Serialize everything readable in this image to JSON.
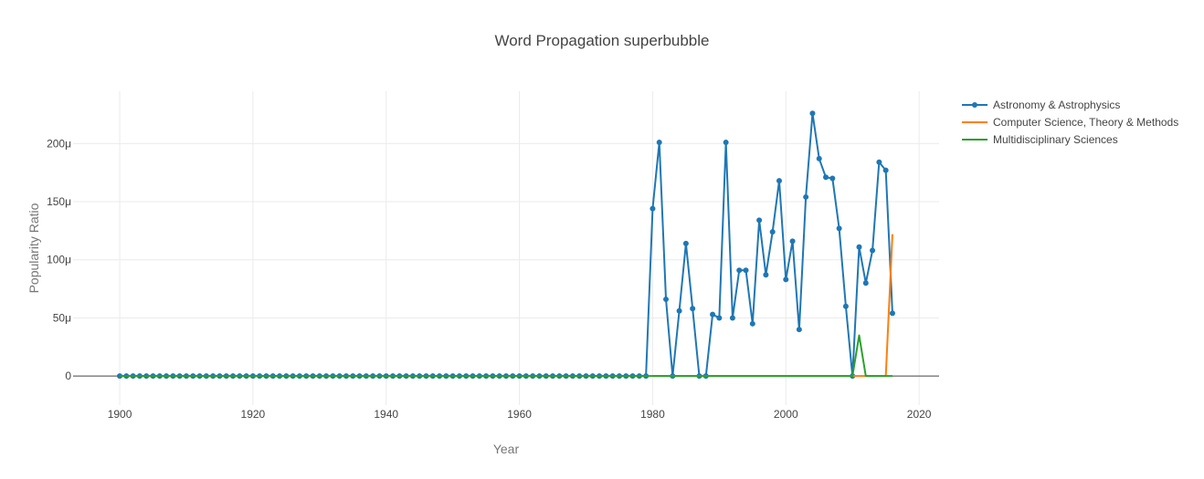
{
  "chart_data": {
    "type": "line",
    "title": "Word Propagation superbubble",
    "xlabel": "Year",
    "ylabel": "Popularity Ratio",
    "xlim": [
      1893,
      2023
    ],
    "ylim": [
      -2.5e-05,
      0.000245
    ],
    "x_ticks": [
      {
        "value": 1900,
        "label": "1900"
      },
      {
        "value": 1920,
        "label": "1920"
      },
      {
        "value": 1940,
        "label": "1940"
      },
      {
        "value": 1960,
        "label": "1960"
      },
      {
        "value": 1980,
        "label": "1980"
      },
      {
        "value": 2000,
        "label": "2000"
      },
      {
        "value": 2020,
        "label": "2020"
      }
    ],
    "y_ticks": [
      {
        "value": 0,
        "label": "0"
      },
      {
        "value": 5e-05,
        "label": "50μ"
      },
      {
        "value": 0.0001,
        "label": "100μ"
      },
      {
        "value": 0.00015,
        "label": "150μ"
      },
      {
        "value": 0.0002,
        "label": "200μ"
      }
    ],
    "grid": true,
    "legend_position": "top-right",
    "series": [
      {
        "name": "Astronomy & Astrophysics",
        "color": "#1f77b4",
        "markers": true,
        "points": [
          [
            1900,
            0
          ],
          [
            1901,
            0
          ],
          [
            1902,
            0
          ],
          [
            1903,
            0
          ],
          [
            1904,
            0
          ],
          [
            1905,
            0
          ],
          [
            1906,
            0
          ],
          [
            1907,
            0
          ],
          [
            1908,
            0
          ],
          [
            1909,
            0
          ],
          [
            1910,
            0
          ],
          [
            1911,
            0
          ],
          [
            1912,
            0
          ],
          [
            1913,
            0
          ],
          [
            1914,
            0
          ],
          [
            1915,
            0
          ],
          [
            1916,
            0
          ],
          [
            1917,
            0
          ],
          [
            1918,
            0
          ],
          [
            1919,
            0
          ],
          [
            1920,
            0
          ],
          [
            1921,
            0
          ],
          [
            1922,
            0
          ],
          [
            1923,
            0
          ],
          [
            1924,
            0
          ],
          [
            1925,
            0
          ],
          [
            1926,
            0
          ],
          [
            1927,
            0
          ],
          [
            1928,
            0
          ],
          [
            1929,
            0
          ],
          [
            1930,
            0
          ],
          [
            1931,
            0
          ],
          [
            1932,
            0
          ],
          [
            1933,
            0
          ],
          [
            1934,
            0
          ],
          [
            1935,
            0
          ],
          [
            1936,
            0
          ],
          [
            1937,
            0
          ],
          [
            1938,
            0
          ],
          [
            1939,
            0
          ],
          [
            1940,
            0
          ],
          [
            1941,
            0
          ],
          [
            1942,
            0
          ],
          [
            1943,
            0
          ],
          [
            1944,
            0
          ],
          [
            1945,
            0
          ],
          [
            1946,
            0
          ],
          [
            1947,
            0
          ],
          [
            1948,
            0
          ],
          [
            1949,
            0
          ],
          [
            1950,
            0
          ],
          [
            1951,
            0
          ],
          [
            1952,
            0
          ],
          [
            1953,
            0
          ],
          [
            1954,
            0
          ],
          [
            1955,
            0
          ],
          [
            1956,
            0
          ],
          [
            1957,
            0
          ],
          [
            1958,
            0
          ],
          [
            1959,
            0
          ],
          [
            1960,
            0
          ],
          [
            1961,
            0
          ],
          [
            1962,
            0
          ],
          [
            1963,
            0
          ],
          [
            1964,
            0
          ],
          [
            1965,
            0
          ],
          [
            1966,
            0
          ],
          [
            1967,
            0
          ],
          [
            1968,
            0
          ],
          [
            1969,
            0
          ],
          [
            1970,
            0
          ],
          [
            1971,
            0
          ],
          [
            1972,
            0
          ],
          [
            1973,
            0
          ],
          [
            1974,
            0
          ],
          [
            1975,
            0
          ],
          [
            1976,
            0
          ],
          [
            1977,
            0
          ],
          [
            1978,
            0
          ],
          [
            1979,
            0
          ],
          [
            1980,
            0.000144
          ],
          [
            1981,
            0.000201
          ],
          [
            1982,
            6.6e-05
          ],
          [
            1983,
            0
          ],
          [
            1984,
            5.6e-05
          ],
          [
            1985,
            0.000114
          ],
          [
            1986,
            5.8e-05
          ],
          [
            1987,
            0
          ],
          [
            1988,
            0
          ],
          [
            1989,
            5.3e-05
          ],
          [
            1990,
            5e-05
          ],
          [
            1991,
            0.000201
          ],
          [
            1992,
            5e-05
          ],
          [
            1993,
            9.1e-05
          ],
          [
            1994,
            9.1e-05
          ],
          [
            1995,
            4.5e-05
          ],
          [
            1996,
            0.000134
          ],
          [
            1997,
            8.7e-05
          ],
          [
            1998,
            0.000124
          ],
          [
            1999,
            0.000168
          ],
          [
            2000,
            8.3e-05
          ],
          [
            2001,
            0.000116
          ],
          [
            2002,
            4e-05
          ],
          [
            2003,
            0.000154
          ],
          [
            2004,
            0.000226
          ],
          [
            2005,
            0.000187
          ],
          [
            2006,
            0.000171
          ],
          [
            2007,
            0.00017
          ],
          [
            2008,
            0.000127
          ],
          [
            2009,
            6e-05
          ],
          [
            2010,
            0
          ],
          [
            2011,
            0.000111
          ],
          [
            2012,
            8e-05
          ],
          [
            2013,
            0.000108
          ],
          [
            2014,
            0.000184
          ],
          [
            2015,
            0.000177
          ],
          [
            2016,
            5.4e-05
          ]
        ]
      },
      {
        "name": "Computer Science, Theory & Methods",
        "color": "#ff7f0e",
        "markers": false,
        "points": [
          [
            1980,
            0
          ],
          [
            1985,
            0
          ],
          [
            1990,
            0
          ],
          [
            1995,
            0
          ],
          [
            2000,
            0
          ],
          [
            2005,
            0
          ],
          [
            2010,
            0
          ],
          [
            2011,
            0
          ],
          [
            2012,
            0
          ],
          [
            2013,
            0
          ],
          [
            2014,
            0
          ],
          [
            2015,
            0
          ],
          [
            2016,
            0.000122
          ]
        ]
      },
      {
        "name": "Multidisciplinary Sciences",
        "color": "#2ca02c",
        "markers": false,
        "points": [
          [
            1900,
            0
          ],
          [
            1910,
            0
          ],
          [
            1920,
            0
          ],
          [
            1930,
            0
          ],
          [
            1940,
            0
          ],
          [
            1950,
            0
          ],
          [
            1960,
            0
          ],
          [
            1970,
            0
          ],
          [
            1980,
            0
          ],
          [
            1990,
            0
          ],
          [
            2000,
            0
          ],
          [
            2010,
            0
          ],
          [
            2011,
            3.5e-05
          ],
          [
            2012,
            0
          ],
          [
            2013,
            0
          ],
          [
            2014,
            0
          ],
          [
            2015,
            0
          ],
          [
            2016,
            0
          ]
        ]
      }
    ]
  }
}
